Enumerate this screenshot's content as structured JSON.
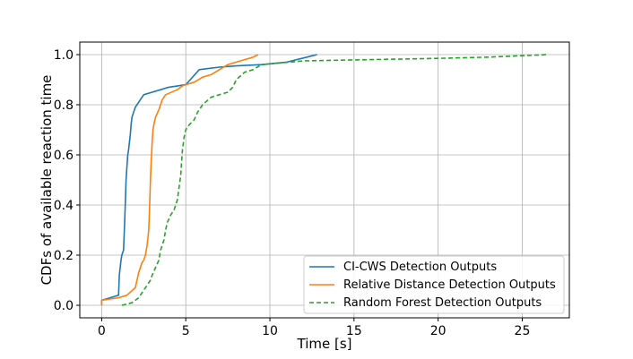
{
  "chart_data": {
    "type": "line",
    "title": "",
    "xlabel": "Time [s]",
    "ylabel": "CDFs of available reaction time",
    "xlim": [
      -1.3,
      27.8
    ],
    "ylim": [
      -0.05,
      1.05
    ],
    "xticks": [
      0,
      5,
      10,
      15,
      20,
      25
    ],
    "xtick_labels": [
      "0",
      "5",
      "10",
      "15",
      "20",
      "25"
    ],
    "yticks": [
      0.0,
      0.2,
      0.4,
      0.6,
      0.8,
      1.0
    ],
    "ytick_labels": [
      "0.0",
      "0.2",
      "0.4",
      "0.6",
      "0.8",
      "1.0"
    ],
    "grid": true,
    "legend_position": "lower-right",
    "series": [
      {
        "name": "CI-CWS Detection Outputs",
        "color": "#1f77b4",
        "dash": "solid",
        "x": [
          0.0,
          0.0,
          1.0,
          1.05,
          1.1,
          1.15,
          1.2,
          1.3,
          1.35,
          1.4,
          1.45,
          1.5,
          1.55,
          1.6,
          1.7,
          1.75,
          1.8,
          1.9,
          1.95,
          2.0,
          2.3,
          2.5,
          3.0,
          3.5,
          4.0,
          5.0,
          5.8,
          7.0,
          8.0,
          9.5,
          11.0,
          12.2,
          12.8
        ],
        "y": [
          0.0,
          0.02,
          0.04,
          0.12,
          0.15,
          0.18,
          0.2,
          0.22,
          0.3,
          0.4,
          0.5,
          0.55,
          0.6,
          0.62,
          0.68,
          0.72,
          0.75,
          0.77,
          0.78,
          0.79,
          0.82,
          0.84,
          0.85,
          0.86,
          0.87,
          0.88,
          0.94,
          0.95,
          0.955,
          0.96,
          0.97,
          0.99,
          1.0
        ]
      },
      {
        "name": "Relative Distance Detection Outputs",
        "color": "#ff7f0e",
        "dash": "solid",
        "x": [
          0.0,
          0.0,
          0.5,
          1.0,
          1.5,
          2.0,
          2.1,
          2.2,
          2.3,
          2.4,
          2.5,
          2.6,
          2.7,
          2.8,
          2.85,
          2.9,
          2.95,
          3.0,
          3.05,
          3.1,
          3.2,
          3.4,
          3.5,
          3.6,
          3.8,
          4.5,
          4.8,
          5.0,
          5.5,
          6.0,
          6.5,
          7.0,
          7.5,
          8.0,
          8.5,
          9.0,
          9.3
        ],
        "y": [
          0.0,
          0.02,
          0.025,
          0.03,
          0.04,
          0.07,
          0.1,
          0.13,
          0.15,
          0.17,
          0.18,
          0.2,
          0.24,
          0.3,
          0.4,
          0.5,
          0.58,
          0.65,
          0.7,
          0.72,
          0.75,
          0.78,
          0.8,
          0.82,
          0.84,
          0.86,
          0.875,
          0.88,
          0.89,
          0.91,
          0.92,
          0.94,
          0.96,
          0.97,
          0.98,
          0.99,
          1.0
        ]
      },
      {
        "name": "Random Forest Detection Outputs",
        "color": "#2ca02c",
        "dash": "dashed",
        "x": [
          1.2,
          1.8,
          2.2,
          2.5,
          2.7,
          2.9,
          3.0,
          3.2,
          3.4,
          3.5,
          3.7,
          3.8,
          3.9,
          4.1,
          4.3,
          4.5,
          4.6,
          4.7,
          4.75,
          4.8,
          4.9,
          5.0,
          5.2,
          5.5,
          5.7,
          6.0,
          6.5,
          7.0,
          7.5,
          7.8,
          8.0,
          8.5,
          9.0,
          9.5,
          12.0,
          16.0,
          20.0,
          23.0,
          26.5
        ],
        "y": [
          0.0,
          0.01,
          0.03,
          0.06,
          0.08,
          0.1,
          0.12,
          0.15,
          0.18,
          0.22,
          0.26,
          0.3,
          0.33,
          0.36,
          0.38,
          0.42,
          0.47,
          0.52,
          0.57,
          0.62,
          0.67,
          0.7,
          0.72,
          0.74,
          0.77,
          0.8,
          0.83,
          0.84,
          0.85,
          0.87,
          0.9,
          0.93,
          0.94,
          0.96,
          0.975,
          0.98,
          0.985,
          0.99,
          1.0
        ]
      }
    ]
  }
}
